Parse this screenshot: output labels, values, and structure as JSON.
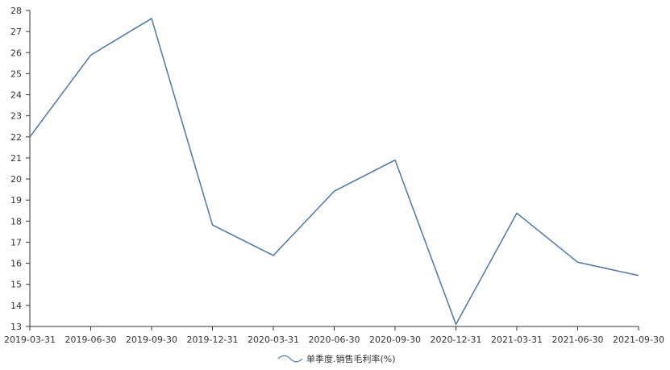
{
  "chart_data": {
    "type": "line",
    "title": "",
    "xlabel": "",
    "ylabel": "",
    "ylim": [
      13,
      28
    ],
    "y_ticks": [
      13,
      14,
      15,
      16,
      17,
      18,
      19,
      20,
      21,
      22,
      23,
      24,
      25,
      26,
      27,
      28
    ],
    "categories": [
      "2019-03-31",
      "2019-06-30",
      "2019-09-30",
      "2019-12-31",
      "2020-03-31",
      "2020-06-30",
      "2020-09-30",
      "2020-12-31",
      "2021-03-31",
      "2021-06-30",
      "2021-09-30"
    ],
    "series": [
      {
        "name": "单季度.销售毛利率(%)",
        "values": [
          22.0,
          25.88,
          27.62,
          17.82,
          16.37,
          19.42,
          20.9,
          13.1,
          18.38,
          16.05,
          15.42
        ],
        "color": "#4e77a3"
      }
    ],
    "grid": false,
    "legend_position": "bottom-center"
  }
}
